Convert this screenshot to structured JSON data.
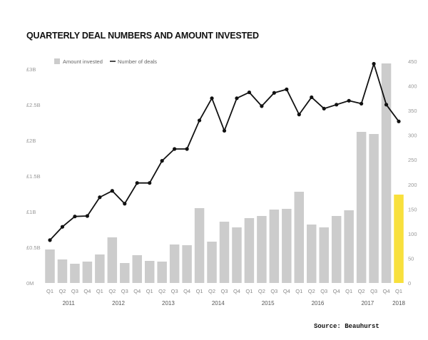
{
  "chart_data": {
    "type": "bar+line",
    "title": "QUARTERLY DEAL NUMBERS AND AMOUNT INVESTED",
    "source": "Source: Beauhurst",
    "legend": {
      "position": "top-left",
      "entries": [
        "Amount invested",
        "Number of deals"
      ]
    },
    "quarters": [
      "Q1",
      "Q2",
      "Q3",
      "Q4",
      "Q1",
      "Q2",
      "Q3",
      "Q4",
      "Q1",
      "Q2",
      "Q3",
      "Q4",
      "Q1",
      "Q2",
      "Q3",
      "Q4",
      "Q1",
      "Q2",
      "Q3",
      "Q4",
      "Q1",
      "Q2",
      "Q3",
      "Q4",
      "Q1",
      "Q2",
      "Q3",
      "Q4",
      "Q1"
    ],
    "years": [
      {
        "label": "2011",
        "start": 0,
        "end": 3
      },
      {
        "label": "2012",
        "start": 4,
        "end": 7
      },
      {
        "label": "2013",
        "start": 8,
        "end": 11
      },
      {
        "label": "2014",
        "start": 12,
        "end": 15
      },
      {
        "label": "2015",
        "start": 16,
        "end": 19
      },
      {
        "label": "2016",
        "start": 20,
        "end": 23
      },
      {
        "label": "2017",
        "start": 24,
        "end": 27
      },
      {
        "label": "2018",
        "start": 28,
        "end": 28
      }
    ],
    "series": [
      {
        "name": "Amount invested",
        "unit": "£B",
        "axis": "left",
        "values": [
          0.47,
          0.33,
          0.27,
          0.3,
          0.4,
          0.64,
          0.28,
          0.39,
          0.31,
          0.3,
          0.54,
          0.53,
          1.05,
          0.58,
          0.86,
          0.78,
          0.91,
          0.94,
          1.03,
          1.04,
          1.28,
          0.82,
          0.78,
          0.94,
          1.02,
          2.12,
          2.09,
          3.08,
          1.24
        ]
      },
      {
        "name": "Number of deals",
        "axis": "right",
        "values": [
          87,
          114,
          135,
          136,
          174,
          187,
          161,
          203,
          203,
          248,
          272,
          272,
          330,
          375,
          309,
          375,
          387,
          359,
          386,
          393,
          342,
          377,
          354,
          362,
          370,
          364,
          445,
          362,
          328
        ]
      }
    ],
    "left_axis": {
      "ylim": [
        0,
        3
      ],
      "ticks": [
        0,
        0.5,
        1,
        1.5,
        2,
        2.5,
        3
      ],
      "tick_labels": [
        "0M",
        "£0.5B",
        "£1B",
        "£1.5B",
        "£2B",
        "£2.5B",
        "£3B"
      ]
    },
    "right_axis": {
      "ylim": [
        0,
        450
      ],
      "ticks": [
        0,
        50,
        100,
        150,
        200,
        250,
        300,
        350,
        400,
        450
      ],
      "tick_labels": [
        "0",
        "50",
        "100",
        "150",
        "200",
        "250",
        "300",
        "350",
        "400",
        "450"
      ]
    },
    "colors": {
      "bar": "#cccccc",
      "highlight_bar": "#f8e03c",
      "line": "#111111"
    },
    "highlight_index": 28
  }
}
